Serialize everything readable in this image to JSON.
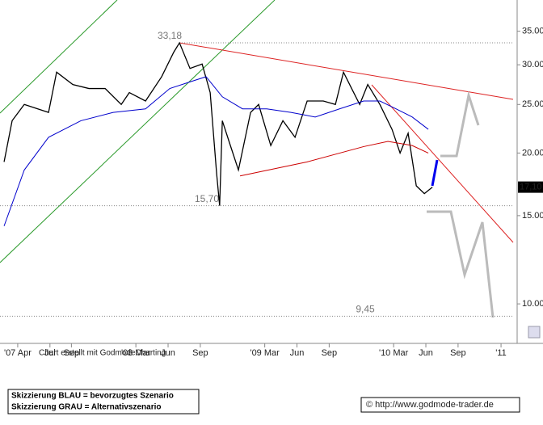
{
  "chart_data": {
    "type": "line",
    "x": [
      1.73,
      2.48,
      3.61,
      5.87,
      6.62,
      8.13,
      9.63,
      11.14,
      12.64,
      13.39,
      14.9,
      16.4,
      17.53,
      18.06,
      19.04,
      20.17,
      20.92,
      21.52,
      21.8,
      22.05,
      22.8,
      23.55,
      24.68,
      25.43,
      26.56,
      27.69,
      28.82,
      29.95,
      31.45,
      32.58,
      33.33,
      34.09,
      34.84,
      35.59,
      36.72,
      37.85,
      38.6,
      39.35,
      40.11,
      40.86,
      41.61
    ],
    "series": [
      {
        "color": "#000000",
        "values": [
          19.2,
          23.2,
          25.0,
          24.1,
          29.0,
          27.4,
          26.9,
          26.9,
          25.0,
          26.4,
          25.4,
          28.4,
          31.8,
          33.18,
          29.5,
          30.1,
          26.4,
          18.2,
          15.7,
          23.2,
          20.7,
          18.5,
          24.1,
          25.0,
          20.7,
          23.2,
          21.5,
          25.4,
          25.4,
          25.0,
          29.0,
          26.9,
          25.0,
          27.4,
          25.0,
          22.3,
          20.0,
          21.9,
          17.2,
          16.6,
          17.1
        ]
      },
      {
        "color": "#0000cc",
        "x": [
          1.73,
          3.61,
          5.87,
          8.88,
          11.89,
          14.9,
          17.16,
          19.41,
          20.54,
          22.05,
          23.93,
          26.19,
          28.44,
          30.7,
          32.96,
          35.21,
          36.72,
          38.22,
          39.73,
          41.23
        ],
        "values": [
          14.3,
          18.5,
          21.5,
          23.2,
          24.1,
          24.5,
          26.9,
          27.9,
          28.4,
          25.9,
          24.5,
          24.5,
          24.1,
          23.6,
          24.5,
          25.4,
          25.4,
          24.5,
          23.6,
          22.3
        ]
      },
      {
        "color": "#cc0000",
        "x": [
          23.7,
          29.95,
          35.21,
          37.47,
          39.73,
          41.23
        ],
        "values": [
          18.0,
          19.2,
          20.6,
          21.1,
          20.7,
          20.0
        ]
      }
    ],
    "last_price": {
      "value": 17.1,
      "label": "17,10"
    },
    "levels": [
      {
        "value": 33.18,
        "label": "33,18"
      },
      {
        "value": 15.7,
        "label": "15,70"
      },
      {
        "value": 9.45,
        "label": "9,45"
      }
    ],
    "log_scale": true,
    "xlim": [
      1.35,
      49.5
    ],
    "ylim": [
      8.34,
      40.4
    ],
    "yticks": [
      {
        "value": 10,
        "label": "10.00"
      },
      {
        "value": 15,
        "label": "15.00"
      },
      {
        "value": 20,
        "label": "20.00"
      },
      {
        "value": 25,
        "label": "25.00"
      },
      {
        "value": 30,
        "label": "30.00"
      },
      {
        "value": 35,
        "label": "35.00"
      }
    ],
    "xticks": [
      {
        "value": 3,
        "label": "'07 Apr"
      },
      {
        "value": 6,
        "label": "Jul"
      },
      {
        "value": 8,
        "label": "Sep"
      },
      {
        "value": 14,
        "label": "'08 Mar"
      },
      {
        "value": 17,
        "label": "Jun"
      },
      {
        "value": 20,
        "label": "Sep"
      },
      {
        "value": 26,
        "label": "'09 Mar"
      },
      {
        "value": 29,
        "label": "Jun"
      },
      {
        "value": 32,
        "label": "Sep"
      },
      {
        "value": 38,
        "label": "'10 Mar"
      },
      {
        "value": 41,
        "label": "Jun"
      },
      {
        "value": 44,
        "label": "Sep"
      },
      {
        "value": 48,
        "label": "'11"
      }
    ]
  },
  "footer": {
    "credit": "Chart erstellt mit GodmodeCharting",
    "legend": [
      "Skizzierung BLAU = bevorzugtes Szenario",
      "Skizzierung GRAU = Alternativszenario"
    ],
    "source": "© http://www.godmode-trader.de"
  }
}
